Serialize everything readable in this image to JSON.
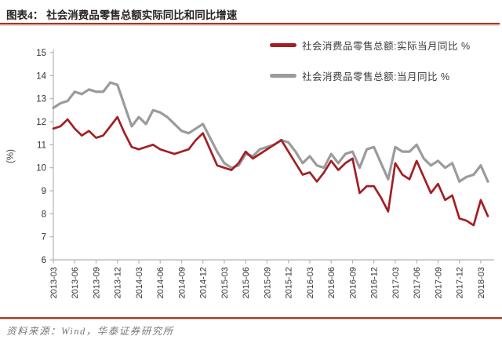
{
  "header": {
    "figure_label": "图表4：",
    "title": "社会消费品零售总额实际同比和同比增速"
  },
  "footer": {
    "source": "资料来源：Wind，华泰证券研究所"
  },
  "colors": {
    "accent_rule": "#a13a27",
    "real_line": "#a31f24",
    "nominal_line": "#9b9b9b",
    "axis": "#b3b3b3",
    "tick_text": "#333333"
  },
  "chart_data": {
    "type": "line",
    "ylabel": "(%)",
    "ylim": [
      6,
      15
    ],
    "ytick_step": 1,
    "grid": false,
    "legend_position": "top-right",
    "x_tick_every": 3,
    "x_tick_labels": [
      "2013-03",
      "2013-06",
      "2013-09",
      "2013-12",
      "2014-03",
      "2014-06",
      "2014-09",
      "2014-12",
      "2015-03",
      "2015-06",
      "2015-09",
      "2015-12",
      "2016-03",
      "2016-06",
      "2016-09",
      "2016-12",
      "2017-03",
      "2017-06",
      "2017-09",
      "2017-12",
      "2018-03"
    ],
    "x": [
      "2013-03",
      "2013-04",
      "2013-05",
      "2013-06",
      "2013-07",
      "2013-08",
      "2013-09",
      "2013-10",
      "2013-11",
      "2013-12",
      "2014-01",
      "2014-02",
      "2014-03",
      "2014-04",
      "2014-05",
      "2014-06",
      "2014-07",
      "2014-08",
      "2014-09",
      "2014-10",
      "2014-11",
      "2014-12",
      "2015-01",
      "2015-02",
      "2015-03",
      "2015-04",
      "2015-05",
      "2015-06",
      "2015-07",
      "2015-08",
      "2015-09",
      "2015-10",
      "2015-11",
      "2015-12",
      "2016-01",
      "2016-02",
      "2016-03",
      "2016-04",
      "2016-05",
      "2016-06",
      "2016-07",
      "2016-08",
      "2016-09",
      "2016-10",
      "2016-11",
      "2016-12",
      "2017-01",
      "2017-02",
      "2017-03",
      "2017-04",
      "2017-05",
      "2017-06",
      "2017-07",
      "2017-08",
      "2017-09",
      "2017-10",
      "2017-11",
      "2017-12",
      "2018-01",
      "2018-02",
      "2018-03",
      "2018-04"
    ],
    "series": [
      {
        "name": "社会消费品零售总额:实际当月同比 %",
        "color": "#a31f24",
        "width": 2.7,
        "values": [
          11.7,
          11.8,
          12.1,
          11.7,
          11.4,
          11.6,
          11.3,
          11.4,
          11.8,
          12.2,
          11.5,
          10.9,
          10.8,
          10.9,
          11.0,
          10.8,
          10.7,
          10.6,
          10.7,
          10.8,
          11.2,
          11.5,
          10.8,
          10.1,
          10.0,
          9.9,
          10.2,
          10.7,
          10.4,
          10.6,
          10.8,
          11.0,
          11.2,
          10.7,
          10.2,
          9.7,
          9.8,
          9.4,
          9.8,
          10.3,
          9.9,
          10.2,
          10.4,
          8.9,
          9.2,
          9.2,
          8.7,
          8.1,
          10.2,
          9.7,
          9.5,
          10.3,
          9.6,
          8.9,
          9.3,
          8.6,
          8.8,
          7.8,
          7.7,
          7.5,
          8.6,
          7.9
        ]
      },
      {
        "name": "社会消费品零售总额:当月同比 %",
        "color": "#9b9b9b",
        "width": 3.2,
        "values": [
          12.6,
          12.8,
          12.9,
          13.3,
          13.2,
          13.4,
          13.3,
          13.3,
          13.7,
          13.6,
          12.7,
          11.8,
          12.2,
          11.9,
          12.5,
          12.4,
          12.2,
          11.9,
          11.6,
          11.5,
          11.7,
          11.9,
          11.3,
          10.7,
          10.2,
          10.0,
          10.1,
          10.6,
          10.5,
          10.8,
          10.9,
          11.0,
          11.2,
          11.1,
          10.7,
          10.2,
          10.5,
          10.1,
          10.0,
          10.6,
          10.2,
          10.6,
          10.7,
          10.0,
          10.8,
          10.9,
          10.2,
          9.5,
          10.9,
          10.7,
          10.7,
          11.0,
          10.4,
          10.1,
          10.3,
          10.0,
          10.2,
          9.4,
          9.6,
          9.7,
          10.1,
          9.4
        ]
      }
    ]
  }
}
